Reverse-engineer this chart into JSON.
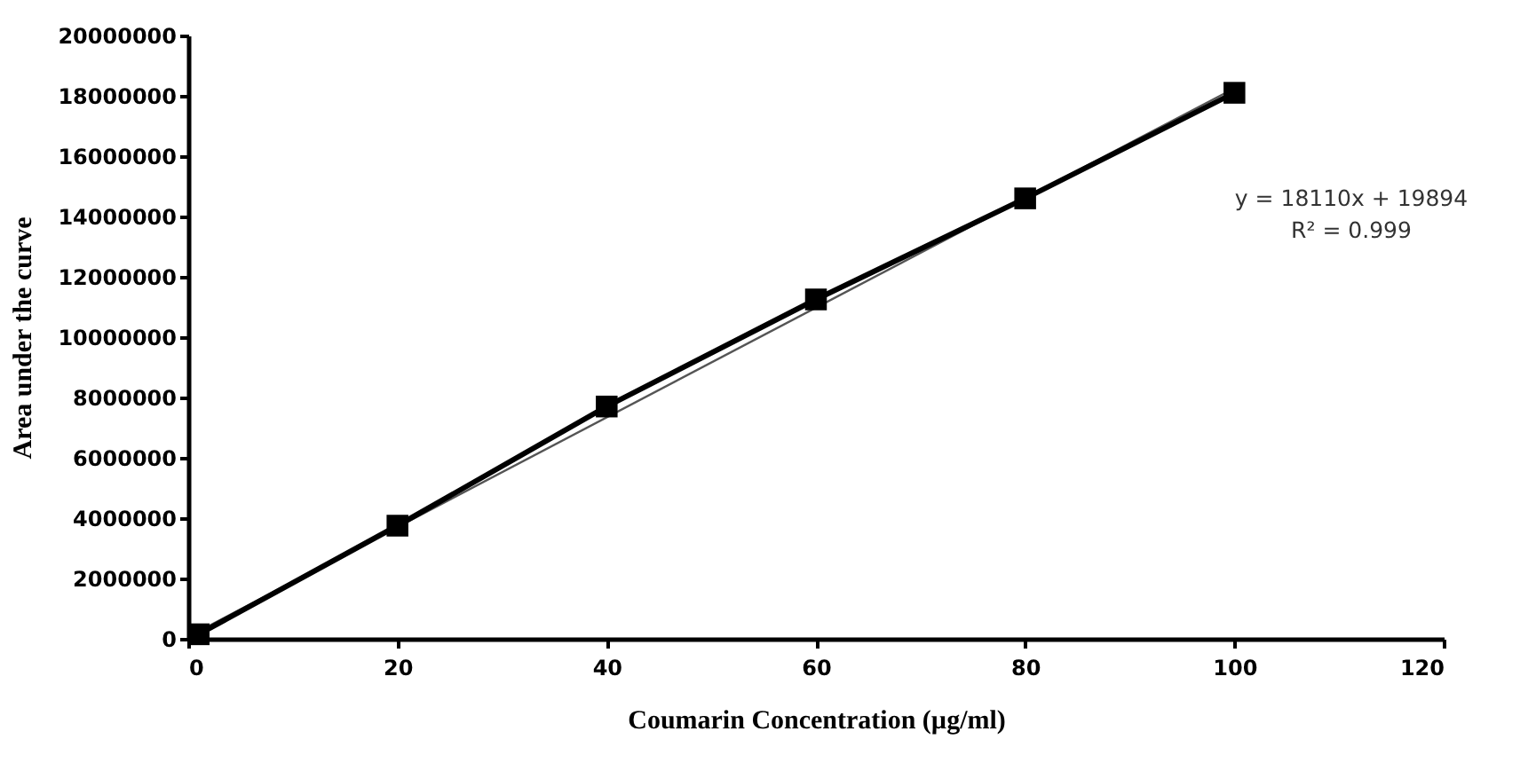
{
  "chart_data": {
    "type": "line",
    "xlabel": "Coumarin Concentration (µg/ml)",
    "ylabel": "Area under the curve",
    "x": [
      1,
      20,
      40,
      60,
      80,
      100
    ],
    "series": [
      {
        "color": "#000000",
        "marker": "square",
        "values": [
          150000,
          3750000,
          7700000,
          11250000,
          14600000,
          18100000
        ]
      },
      {
        "type": "line",
        "marker": "none",
        "color": "#555555",
        "x": [
          1,
          100
        ],
        "values": [
          250000,
          18250000
        ]
      }
    ],
    "annotations": [
      "y = 18110x + 19894",
      "R² = 0.999"
    ],
    "xlim": [
      0,
      120
    ],
    "xticks": [
      0,
      20,
      40,
      60,
      80,
      100,
      120
    ],
    "ylim": [
      0,
      20000000
    ],
    "yticks": [
      0,
      2000000,
      4000000,
      6000000,
      8000000,
      10000000,
      12000000,
      14000000,
      16000000,
      18000000,
      20000000
    ],
    "grid": false
  }
}
